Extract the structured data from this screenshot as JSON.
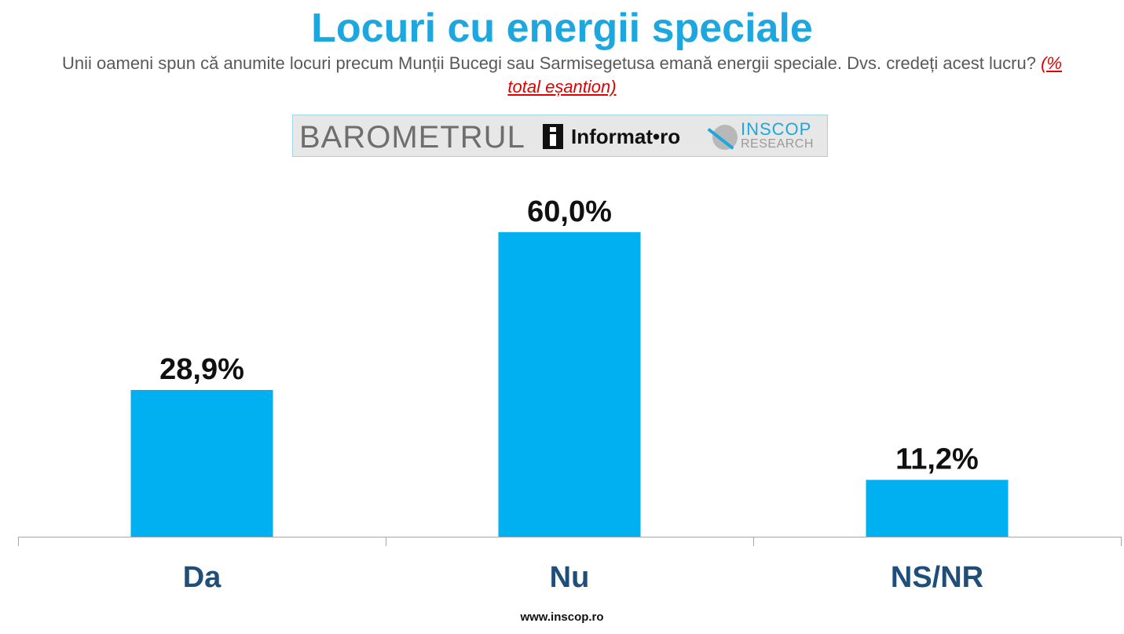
{
  "header": {
    "title": "Locuri cu energii speciale",
    "subtitle": "Unii oameni spun că anumite locuri precum Munții Bucegi sau Sarmisegetusa emană energii speciale. Dvs. credeți acest lucru?",
    "note": "(% total eșantion)"
  },
  "logos": {
    "barometrul": "BAROMETRUL",
    "informat": "Informat•ro",
    "inscop_main": "INSCOP",
    "inscop_sub": "RESEARCH"
  },
  "chart_data": {
    "type": "bar",
    "title": "Locuri cu energii speciale",
    "categories": [
      "Da",
      "Nu",
      "NS/NR"
    ],
    "values": [
      28.9,
      60.0,
      11.2
    ],
    "value_labels": [
      "28,9%",
      "60,0%",
      "11,2%"
    ],
    "xlabel": "",
    "ylabel": "",
    "ylim": [
      0,
      70
    ],
    "grid": false,
    "legend": "none",
    "bar_color": "#00b0f0"
  },
  "footer": {
    "url": "www.inscop.ro"
  },
  "colors": {
    "title": "#1ea7de",
    "category_labels": "#1f4e79",
    "note": "#e00000"
  }
}
